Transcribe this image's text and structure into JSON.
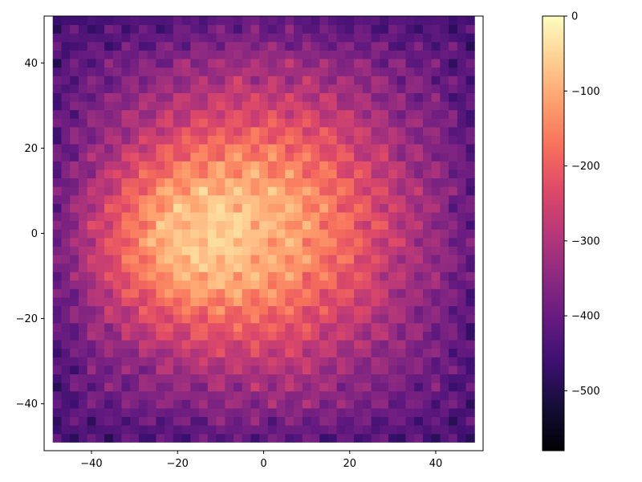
{
  "chart_data": {
    "type": "heatmap",
    "title": "",
    "xlabel": "",
    "ylabel": "",
    "xlim": [
      -51,
      51
    ],
    "ylim": [
      -51,
      51
    ],
    "x_ticks": [
      -40,
      -20,
      0,
      20,
      40
    ],
    "y_ticks": [
      -40,
      -20,
      0,
      20,
      40
    ],
    "x_tick_labels": [
      "−40",
      "−20",
      "0",
      "20",
      "40"
    ],
    "y_tick_labels": [
      "−40",
      "−20",
      "0",
      "20",
      "40"
    ],
    "grid": false,
    "colormap": "magma",
    "colorbar": {
      "range": [
        -580,
        0
      ],
      "ticks": [
        0,
        -100,
        -200,
        -300,
        -400,
        -500
      ],
      "tick_labels": [
        "0",
        "−100",
        "−200",
        "−300",
        "−400",
        "−500"
      ]
    },
    "data_extent": {
      "x": [
        -49,
        49
      ],
      "y": [
        -49,
        50
      ]
    },
    "field_description_values": {
      "edge_value": -430,
      "center_value": -60,
      "bright_region_center": [
        0,
        2
      ],
      "secondary_bright_center": [
        -22,
        -2
      ]
    }
  },
  "colors": {
    "axis": "#000000",
    "background": "#ffffff"
  }
}
